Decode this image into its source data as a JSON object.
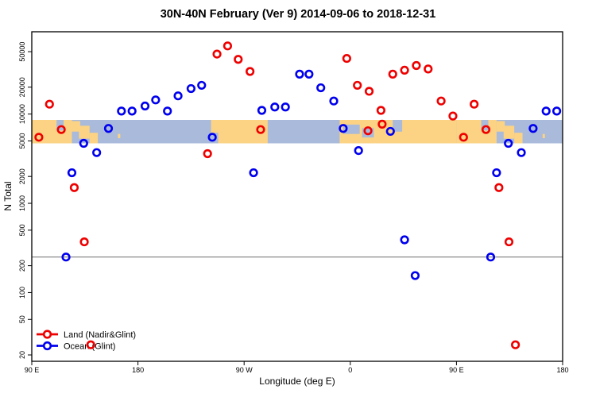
{
  "chart_data": {
    "type": "scatter",
    "title": "30N-40N February (Ver 9)   2014-09-06 to 2018-12-31",
    "xlabel": "Longitude (deg E)",
    "ylabel": "N Total",
    "y_scale": "log",
    "ylim": [
      17,
      83000
    ],
    "x_axis_span_deg": 450,
    "x_axis_note": "axis starts at 90E and wraps eastward through 180, 90W, 0, 90E to 180; points with lon between 90E and 180E are plotted at both ends",
    "xticks": [
      {
        "pos_deg": 0,
        "label": "90 E"
      },
      {
        "pos_deg": 90,
        "label": "180"
      },
      {
        "pos_deg": 180,
        "label": "90 W"
      },
      {
        "pos_deg": 270,
        "label": "0"
      },
      {
        "pos_deg": 360,
        "label": "90 E"
      },
      {
        "pos_deg": 450,
        "label": "180"
      }
    ],
    "yticks": [
      {
        "value": 20,
        "label": "20"
      },
      {
        "value": 50,
        "label": "50"
      },
      {
        "value": 100,
        "label": "100"
      },
      {
        "value": 200,
        "label": "200"
      },
      {
        "value": 500,
        "label": "500"
      },
      {
        "value": 1000,
        "label": "1000"
      },
      {
        "value": 2000,
        "label": "2000"
      },
      {
        "value": 5000,
        "label": "5000"
      },
      {
        "value": 10000,
        "label": "10000"
      },
      {
        "value": 20000,
        "label": "20000"
      },
      {
        "value": 50000,
        "label": "50000"
      }
    ],
    "reference_line": {
      "value": 250,
      "color": "#7f7f7f"
    },
    "legend": {
      "position": "bottom-left",
      "entries": [
        {
          "label": "Land (Nadir&Glint)",
          "color": "#ee0000"
        },
        {
          "label": "Ocean (Glint)",
          "color": "#0000ee"
        }
      ]
    },
    "series": [
      {
        "name": "Land (Nadir&Glint)",
        "color": "#ee0000",
        "marker": "open-circle",
        "points": [
          {
            "lon": 96,
            "n": 5500
          },
          {
            "lon": 105,
            "n": 12900
          },
          {
            "lon": 115,
            "n": 6700
          },
          {
            "lon": 126,
            "n": 1500
          },
          {
            "lon": 134.5,
            "n": 370
          },
          {
            "lon": 140,
            "n": 26
          },
          {
            "lon": 239,
            "n": 3600
          },
          {
            "lon": 247,
            "n": 47000
          },
          {
            "lon": 256,
            "n": 58000
          },
          {
            "lon": 265,
            "n": 41000
          },
          {
            "lon": 275,
            "n": 30000
          },
          {
            "lon": 284,
            "n": 6700
          },
          {
            "lon": 357,
            "n": 42000
          },
          {
            "lon": 6,
            "n": 21000
          },
          {
            "lon": 15,
            "n": 6500
          },
          {
            "lon": 16,
            "n": 18000
          },
          {
            "lon": 26,
            "n": 11000
          },
          {
            "lon": 27,
            "n": 7700
          },
          {
            "lon": 36,
            "n": 28000
          },
          {
            "lon": 46,
            "n": 31000
          },
          {
            "lon": 56,
            "n": 35000
          },
          {
            "lon": 66,
            "n": 32000
          },
          {
            "lon": 77,
            "n": 14000
          },
          {
            "lon": 87,
            "n": 9500
          }
        ]
      },
      {
        "name": "Ocean (Glint)",
        "color": "#0000ee",
        "marker": "open-circle",
        "points": [
          {
            "lon": 119,
            "n": 250
          },
          {
            "lon": 124,
            "n": 2200
          },
          {
            "lon": 134,
            "n": 4700
          },
          {
            "lon": 145,
            "n": 3700
          },
          {
            "lon": 155,
            "n": 6900
          },
          {
            "lon": 166,
            "n": 10800
          },
          {
            "lon": 175,
            "n": 10800
          },
          {
            "lon": 186,
            "n": 12300
          },
          {
            "lon": 195,
            "n": 14400
          },
          {
            "lon": 205,
            "n": 10800
          },
          {
            "lon": 214,
            "n": 16000
          },
          {
            "lon": 225,
            "n": 19300
          },
          {
            "lon": 234,
            "n": 21000
          },
          {
            "lon": 243,
            "n": 5500
          },
          {
            "lon": 278,
            "n": 2200
          },
          {
            "lon": 285,
            "n": 11000
          },
          {
            "lon": 296,
            "n": 12000
          },
          {
            "lon": 305,
            "n": 12000
          },
          {
            "lon": 317,
            "n": 28000
          },
          {
            "lon": 325,
            "n": 28000
          },
          {
            "lon": 335,
            "n": 19700
          },
          {
            "lon": 346,
            "n": 14000
          },
          {
            "lon": 354,
            "n": 6900
          },
          {
            "lon": 7,
            "n": 3900
          },
          {
            "lon": 34,
            "n": 6400
          },
          {
            "lon": 46,
            "n": 390
          },
          {
            "lon": 55,
            "n": 155
          }
        ]
      }
    ],
    "map_strip": {
      "description": "latitude-band world map drawn as horizontal strip",
      "value_top": 8600,
      "value_bottom": 4700,
      "ocean_color": "#a9badb",
      "land_color": "#fcd384",
      "land_segments_deg": [
        [
          0,
          34
        ],
        [
          152,
          200
        ],
        [
          261,
          360
        ]
      ],
      "patches": [
        {
          "type": "ocean",
          "p": [
            21,
            27
          ],
          "t": [
            0.0,
            0.45
          ]
        },
        {
          "type": "land",
          "p": [
            34,
            41
          ],
          "t": [
            0.05,
            0.5
          ]
        },
        {
          "type": "land",
          "p": [
            40,
            49
          ],
          "t": [
            0.25,
            0.8
          ]
        },
        {
          "type": "land",
          "p": [
            49,
            56
          ],
          "t": [
            0.55,
            1.0
          ]
        },
        {
          "type": "land",
          "p": [
            73,
            75
          ],
          "t": [
            0.6,
            0.78
          ]
        },
        {
          "type": "ocean",
          "p": [
            151,
            158
          ],
          "t": [
            0.55,
            1.0
          ]
        },
        {
          "type": "ocean",
          "p": [
            264,
            278
          ],
          "t": [
            0.2,
            0.6
          ]
        },
        {
          "type": "ocean",
          "p": [
            280,
            290
          ],
          "t": [
            0.35,
            0.75
          ]
        },
        {
          "type": "ocean",
          "p": [
            306,
            314
          ],
          "t": [
            0.0,
            0.5
          ]
        }
      ]
    }
  }
}
